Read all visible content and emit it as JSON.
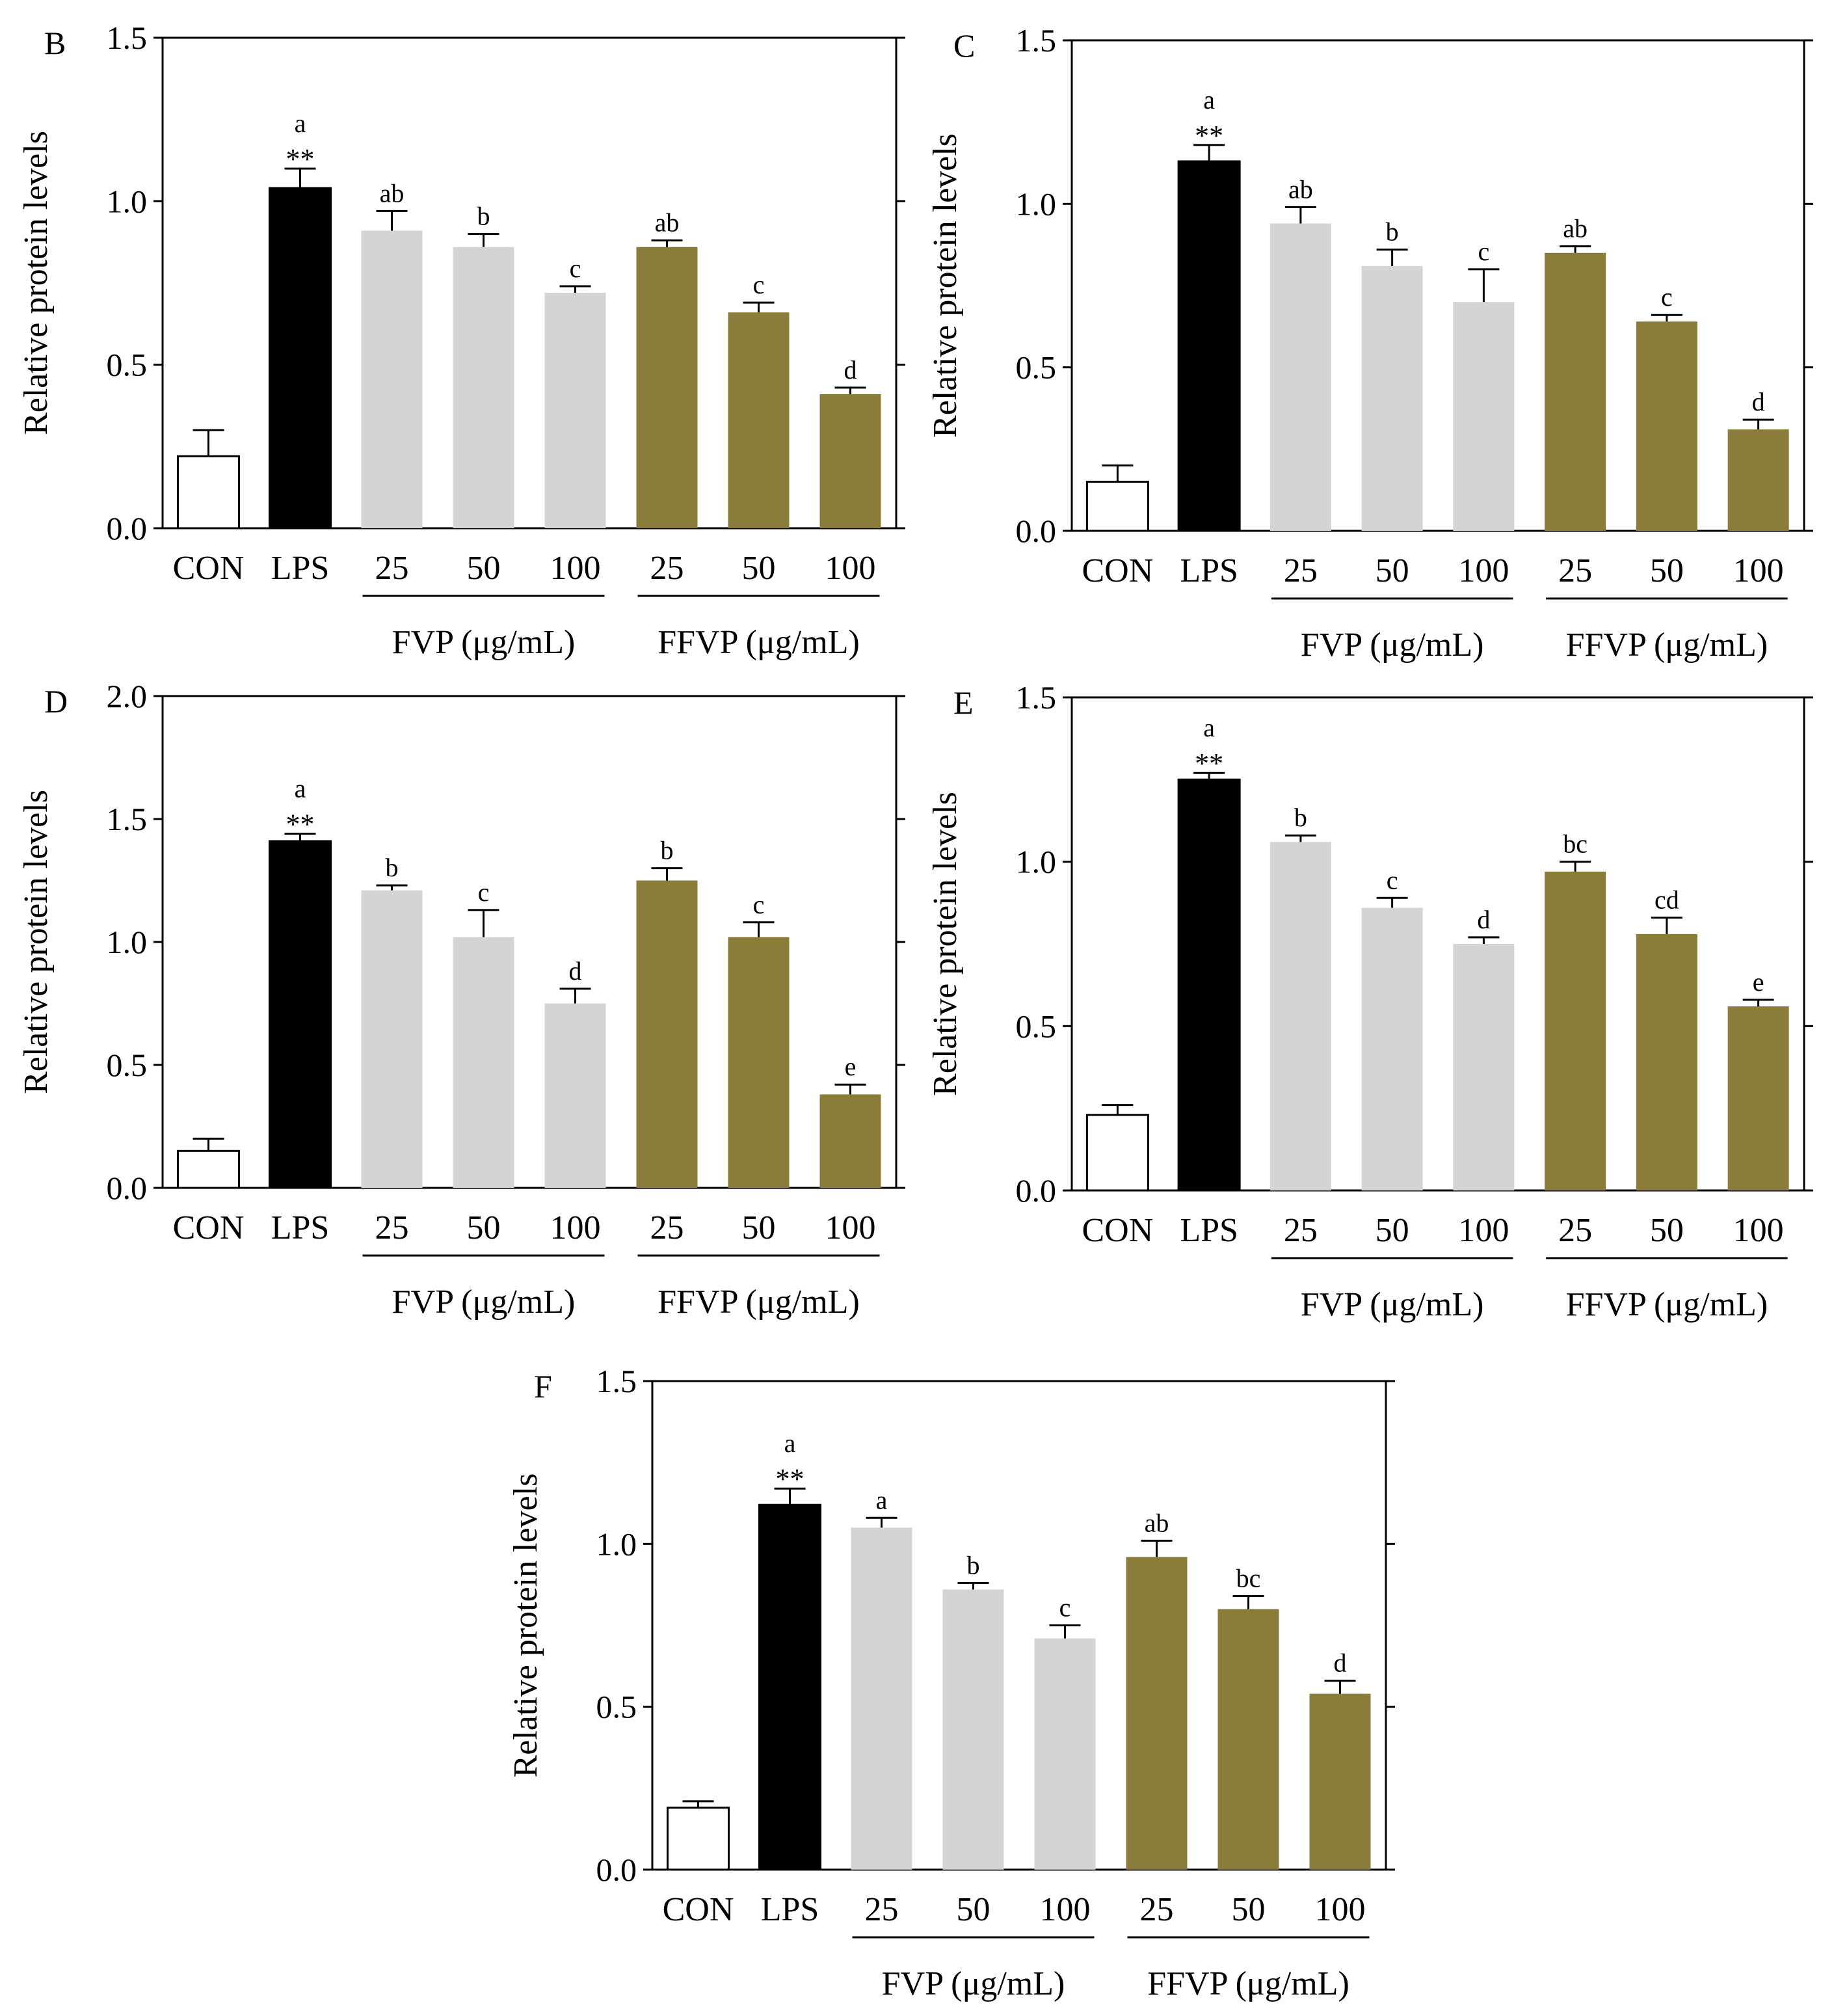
{
  "chart_data": [
    {
      "panel": "B",
      "type": "bar",
      "ylabel": "Relative protein levels",
      "ylim": [
        0,
        1.5
      ],
      "yticks": [
        "0.0",
        "0.5",
        "1.0",
        "1.5"
      ],
      "categories": [
        "CON",
        "LPS",
        "25",
        "50",
        "100",
        "25",
        "50",
        "100"
      ],
      "groups": [
        {
          "label": "FVP (μg/mL)",
          "from": 2,
          "to": 4
        },
        {
          "label": "FFVP (μg/mL)",
          "from": 5,
          "to": 7
        }
      ],
      "values": [
        0.22,
        1.04,
        0.91,
        0.86,
        0.72,
        0.86,
        0.66,
        0.41
      ],
      "errors": [
        0.08,
        0.06,
        0.06,
        0.04,
        0.02,
        0.02,
        0.03,
        0.02
      ],
      "letters": [
        "",
        "a",
        "ab",
        "b",
        "c",
        "ab",
        "c",
        "d"
      ],
      "stars": [
        "",
        "**",
        "",
        "",
        "",
        "",
        "",
        ""
      ]
    },
    {
      "panel": "C",
      "type": "bar",
      "ylabel": "Relative protein levels",
      "ylim": [
        0,
        1.5
      ],
      "yticks": [
        "0.0",
        "0.5",
        "1.0",
        "1.5"
      ],
      "categories": [
        "CON",
        "LPS",
        "25",
        "50",
        "100",
        "25",
        "50",
        "100"
      ],
      "groups": [
        {
          "label": "FVP (μg/mL)",
          "from": 2,
          "to": 4
        },
        {
          "label": "FFVP (μg/mL)",
          "from": 5,
          "to": 7
        }
      ],
      "values": [
        0.15,
        1.13,
        0.94,
        0.81,
        0.7,
        0.85,
        0.64,
        0.31
      ],
      "errors": [
        0.05,
        0.05,
        0.05,
        0.05,
        0.1,
        0.02,
        0.02,
        0.03
      ],
      "letters": [
        "",
        "a",
        "ab",
        "b",
        "c",
        "ab",
        "c",
        "d"
      ],
      "stars": [
        "",
        "**",
        "",
        "",
        "",
        "",
        "",
        ""
      ]
    },
    {
      "panel": "D",
      "type": "bar",
      "ylabel": "Relative protein levels",
      "ylim": [
        0,
        2.0
      ],
      "yticks": [
        "0.0",
        "0.5",
        "1.0",
        "1.5",
        "2.0"
      ],
      "categories": [
        "CON",
        "LPS",
        "25",
        "50",
        "100",
        "25",
        "50",
        "100"
      ],
      "groups": [
        {
          "label": "FVP (μg/mL)",
          "from": 2,
          "to": 4
        },
        {
          "label": "FFVP (μg/mL)",
          "from": 5,
          "to": 7
        }
      ],
      "values": [
        0.15,
        1.41,
        1.21,
        1.02,
        0.75,
        1.25,
        1.02,
        0.38
      ],
      "errors": [
        0.05,
        0.03,
        0.02,
        0.11,
        0.06,
        0.05,
        0.06,
        0.04
      ],
      "letters": [
        "",
        "a",
        "b",
        "c",
        "d",
        "b",
        "c",
        "e"
      ],
      "stars": [
        "",
        "**",
        "",
        "",
        "",
        "",
        "",
        ""
      ]
    },
    {
      "panel": "E",
      "type": "bar",
      "ylabel": "Relative protein levels",
      "ylim": [
        0,
        1.5
      ],
      "yticks": [
        "0.0",
        "0.5",
        "1.0",
        "1.5"
      ],
      "categories": [
        "CON",
        "LPS",
        "25",
        "50",
        "100",
        "25",
        "50",
        "100"
      ],
      "groups": [
        {
          "label": "FVP (μg/mL)",
          "from": 2,
          "to": 4
        },
        {
          "label": "FFVP (μg/mL)",
          "from": 5,
          "to": 7
        }
      ],
      "values": [
        0.23,
        1.25,
        1.06,
        0.86,
        0.75,
        0.97,
        0.78,
        0.56
      ],
      "errors": [
        0.03,
        0.02,
        0.02,
        0.03,
        0.02,
        0.03,
        0.05,
        0.02
      ],
      "letters": [
        "",
        "a",
        "b",
        "c",
        "d",
        "bc",
        "cd",
        "e"
      ],
      "stars": [
        "",
        "**",
        "",
        "",
        "",
        "",
        "",
        ""
      ]
    },
    {
      "panel": "F",
      "type": "bar",
      "ylabel": "Relative protein levels",
      "ylim": [
        0,
        1.5
      ],
      "yticks": [
        "0.0",
        "0.5",
        "1.0",
        "1.5"
      ],
      "categories": [
        "CON",
        "LPS",
        "25",
        "50",
        "100",
        "25",
        "50",
        "100"
      ],
      "groups": [
        {
          "label": "FVP (μg/mL)",
          "from": 2,
          "to": 4
        },
        {
          "label": "FFVP (μg/mL)",
          "from": 5,
          "to": 7
        }
      ],
      "values": [
        0.19,
        1.12,
        1.05,
        0.86,
        0.71,
        0.96,
        0.8,
        0.54
      ],
      "errors": [
        0.02,
        0.05,
        0.03,
        0.02,
        0.04,
        0.05,
        0.04,
        0.04
      ],
      "letters": [
        "",
        "a",
        "a",
        "b",
        "c",
        "ab",
        "bc",
        "d"
      ],
      "stars": [
        "",
        "**",
        "",
        "",
        "",
        "",
        "",
        ""
      ]
    }
  ],
  "colors": {
    "con_fill": "#ffffff",
    "lps_fill": "#000000",
    "fvp_fill": "#d4d4d4",
    "ffvp_fill": "#8a7d3a",
    "stroke": "#000000"
  }
}
